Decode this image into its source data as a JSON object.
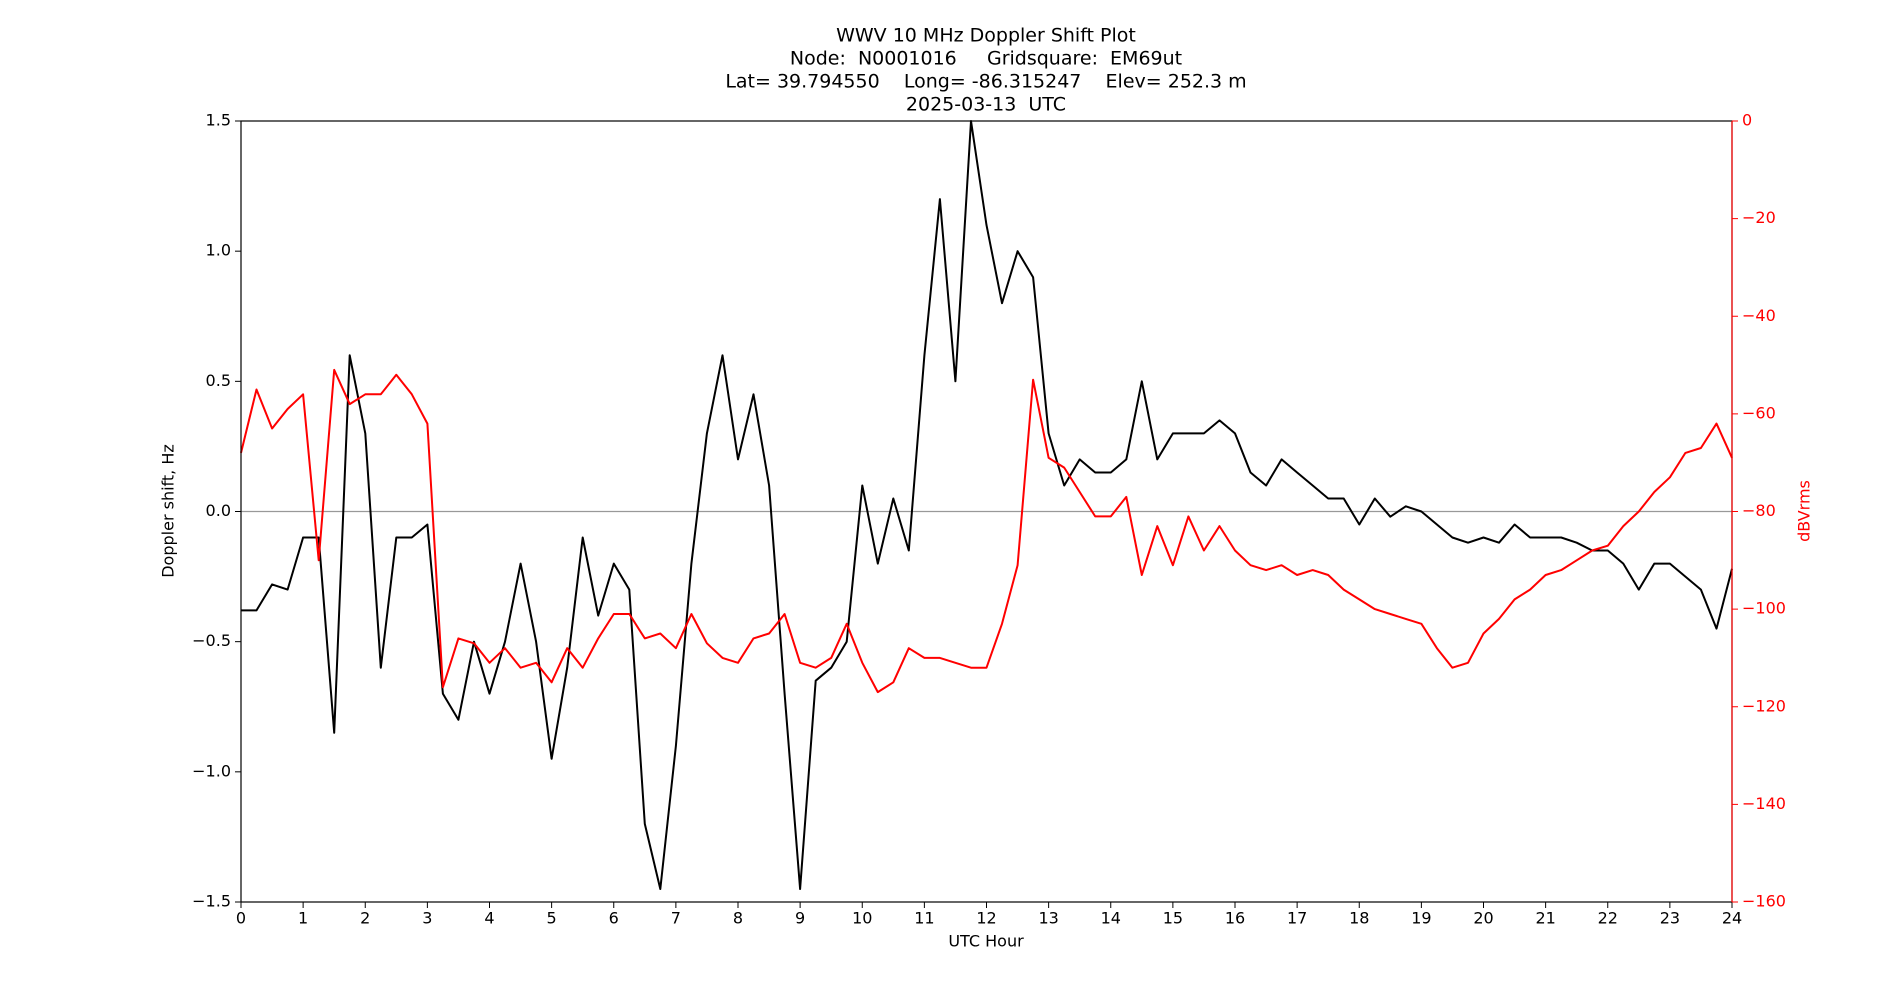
{
  "chart_data": {
    "type": "line",
    "title": [
      "WWV 10 MHz Doppler Shift Plot",
      "Node:  N0001016     Gridsquare:  EM69ut",
      "Lat= 39.794550    Long= -86.315247    Elev= 252.3 m",
      "2025-03-13  UTC"
    ],
    "x_label": "UTC Hour",
    "y_label": "Doppler shift, Hz",
    "y2_label": "dBVrms",
    "x": [
      0,
      0.25,
      0.5,
      0.75,
      1,
      1.25,
      1.5,
      1.75,
      2,
      2.25,
      2.5,
      2.75,
      3,
      3.25,
      3.5,
      3.75,
      4,
      4.25,
      4.5,
      4.75,
      5,
      5.25,
      5.5,
      5.75,
      6,
      6.25,
      6.5,
      6.75,
      7,
      7.25,
      7.5,
      7.75,
      8,
      8.25,
      8.5,
      8.75,
      9,
      9.25,
      9.5,
      9.75,
      10,
      10.25,
      10.5,
      10.75,
      11,
      11.25,
      11.5,
      11.75,
      12,
      12.25,
      12.5,
      12.75,
      13,
      13.25,
      13.5,
      13.75,
      14,
      14.25,
      14.5,
      14.75,
      15,
      15.25,
      15.5,
      15.75,
      16,
      16.25,
      16.5,
      16.75,
      17,
      17.25,
      17.5,
      17.75,
      18,
      18.25,
      18.5,
      18.75,
      19,
      19.25,
      19.5,
      19.75,
      20,
      20.25,
      20.5,
      20.75,
      21,
      21.25,
      21.5,
      21.75,
      22,
      22.25,
      22.5,
      22.75,
      23,
      23.25,
      23.5,
      23.75,
      24
    ],
    "series": [
      {
        "name": "Doppler shift",
        "color": "#000000",
        "axis": "y",
        "values": [
          -0.38,
          -0.38,
          -0.28,
          -0.3,
          -0.1,
          -0.1,
          -0.85,
          0.6,
          0.3,
          -0.6,
          -0.1,
          -0.1,
          -0.05,
          -0.7,
          -0.8,
          -0.5,
          -0.7,
          -0.5,
          -0.2,
          -0.5,
          -0.95,
          -0.6,
          -0.1,
          -0.4,
          -0.2,
          -0.3,
          -1.2,
          -1.45,
          -0.9,
          -0.2,
          0.3,
          0.6,
          0.2,
          0.45,
          0.1,
          -0.7,
          -1.45,
          -0.65,
          -0.6,
          -0.5,
          0.1,
          -0.2,
          0.05,
          -0.15,
          0.6,
          1.2,
          0.5,
          1.5,
          1.1,
          0.8,
          1.0,
          0.9,
          0.3,
          0.1,
          0.2,
          0.15,
          0.15,
          0.2,
          0.5,
          0.2,
          0.3,
          0.3,
          0.3,
          0.35,
          0.3,
          0.15,
          0.1,
          0.2,
          0.15,
          0.1,
          0.05,
          0.05,
          -0.05,
          0.05,
          -0.02,
          0.02,
          0,
          -0.05,
          -0.1,
          -0.12,
          -0.1,
          -0.12,
          -0.05,
          -0.1,
          -0.1,
          -0.1,
          -0.12,
          -0.15,
          -0.15,
          -0.2,
          -0.3,
          -0.2,
          -0.2,
          -0.25,
          -0.3,
          -0.45,
          -0.22
        ]
      },
      {
        "name": "dBVrms",
        "color": "#ff0000",
        "axis": "y2",
        "values": [
          -68,
          -55,
          -63,
          -59,
          -56,
          -90,
          -51,
          -58,
          -56,
          -56,
          -52,
          -56,
          -62,
          -116,
          -106,
          -107,
          -111,
          -108,
          -112,
          -111,
          -115,
          -108,
          -112,
          -106,
          -101,
          -101,
          -106,
          -105,
          -108,
          -101,
          -107,
          -110,
          -111,
          -106,
          -105,
          -101,
          -111,
          -112,
          -110,
          -103,
          -111,
          -117,
          -115,
          -108,
          -110,
          -110,
          -111,
          -112,
          -112,
          -103,
          -91,
          -53,
          -69,
          -71,
          -76,
          -81,
          -81,
          -77,
          -93,
          -83,
          -91,
          -81,
          -88,
          -83,
          -88,
          -91,
          -92,
          -91,
          -93,
          -92,
          -93,
          -96,
          -98,
          -100,
          -101,
          -102,
          -103,
          -108,
          -112,
          -111,
          -105,
          -102,
          -98,
          -96,
          -93,
          -92,
          -90,
          -88,
          -87,
          -83,
          -80,
          -76,
          -73,
          -68,
          -67,
          -62,
          -69
        ]
      }
    ],
    "xlim": [
      0,
      24
    ],
    "xticks": [
      0,
      1,
      2,
      3,
      4,
      5,
      6,
      7,
      8,
      9,
      10,
      11,
      12,
      13,
      14,
      15,
      16,
      17,
      18,
      19,
      20,
      21,
      22,
      23,
      24
    ],
    "ylim": [
      -1.5,
      1.5
    ],
    "yticks": [
      {
        "value": -1.5,
        "label": "−1.5"
      },
      {
        "value": -1,
        "label": "−1.0"
      },
      {
        "value": -0.5,
        "label": "−0.5"
      },
      {
        "value": 0,
        "label": "0.0"
      },
      0.5,
      {
        "value": 1,
        "label": "1.0"
      },
      1.5
    ],
    "y2lim": [
      -160,
      0
    ],
    "y2ticks": [
      {
        "value": -160,
        "label": "−160"
      },
      {
        "value": -140,
        "label": "−140"
      },
      {
        "value": -120,
        "label": "−120"
      },
      {
        "value": -100,
        "label": "−100"
      },
      {
        "value": -80,
        "label": "−80"
      },
      {
        "value": -60,
        "label": "−60"
      },
      {
        "value": -40,
        "label": "−40"
      },
      {
        "value": -20,
        "label": "−20"
      },
      0
    ],
    "y2_color": "#ff0000",
    "hline": 0,
    "hline_color": "#999999"
  }
}
